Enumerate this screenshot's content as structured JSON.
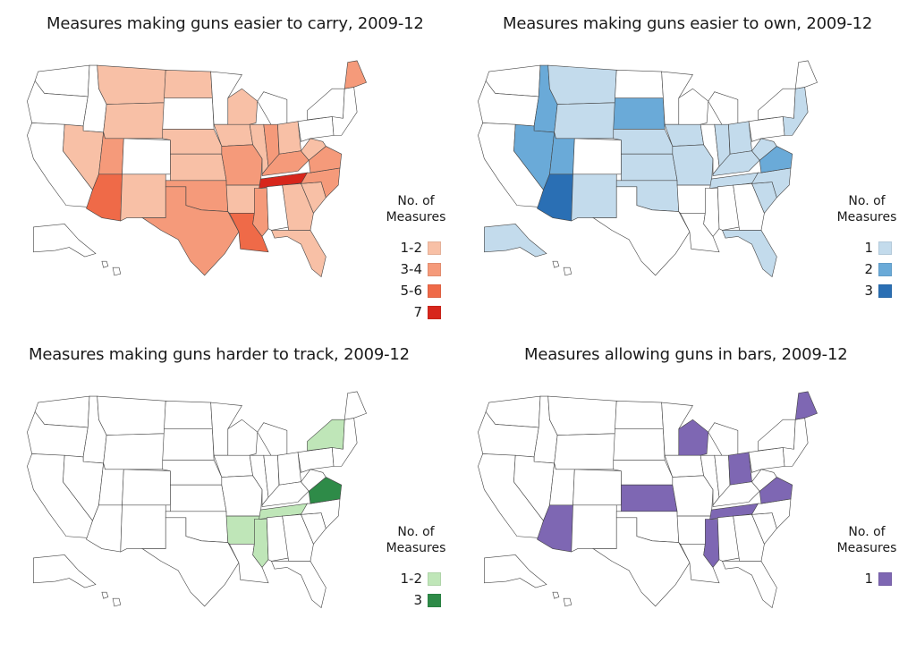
{
  "maps": [
    {
      "title": "Measures making guns easier to carry, 2009-12",
      "legend": {
        "title_line1": "No. of",
        "title_line2": "Measures",
        "items": [
          {
            "label": "1-2",
            "color": "#f8c0a6"
          },
          {
            "label": "3-4",
            "color": "#f59a7a"
          },
          {
            "label": "5-6",
            "color": "#ef6a48"
          },
          {
            "label": "7",
            "color": "#d7261c"
          }
        ]
      },
      "state_classes": {
        "CA": -1,
        "OR": -1,
        "WA": -1,
        "ID": -1,
        "NV": 0,
        "UT": 1,
        "AZ": 2,
        "MT": 0,
        "WY": 0,
        "CO": -1,
        "NM": 0,
        "ND": 0,
        "SD": -1,
        "NE": 0,
        "KS": 0,
        "OK": 1,
        "TX": 1,
        "MN": -1,
        "IA": 0,
        "MO": 1,
        "AR": 0,
        "LA": 2,
        "WI": 0,
        "IL": 0,
        "MS": 1,
        "MI": -1,
        "IN": 1,
        "OH": 0,
        "KY": 1,
        "TN": 3,
        "AL": -1,
        "GA": 0,
        "FL": 0,
        "SC": 0,
        "NC": 1,
        "VA": 1,
        "WV": 0,
        "PA": -1,
        "NY": -1,
        "ME": 1,
        "NE_REGION": -1,
        "AK": -1,
        "HI": -1
      }
    },
    {
      "title": "Measures making guns easier to own, 2009-12",
      "legend": {
        "title_line1": "No. of",
        "title_line2": "Measures",
        "items": [
          {
            "label": "1",
            "color": "#c3dbec"
          },
          {
            "label": "2",
            "color": "#6aaad8"
          },
          {
            "label": "3",
            "color": "#2a6fb4"
          }
        ]
      },
      "state_classes": {
        "CA": -1,
        "OR": -1,
        "WA": -1,
        "ID": 1,
        "NV": 1,
        "UT": 1,
        "AZ": 2,
        "MT": 0,
        "WY": 0,
        "CO": -1,
        "NM": 0,
        "ND": -1,
        "SD": 1,
        "NE": 0,
        "KS": 0,
        "OK": 0,
        "TX": -1,
        "MN": -1,
        "IA": 0,
        "MO": 0,
        "AR": -1,
        "LA": -1,
        "WI": -1,
        "IL": -1,
        "MS": -1,
        "MI": -1,
        "IN": 0,
        "OH": 0,
        "KY": 0,
        "TN": 0,
        "AL": -1,
        "GA": -1,
        "FL": 0,
        "SC": 0,
        "NC": 0,
        "VA": 1,
        "WV": 0,
        "PA": -1,
        "NY": -1,
        "ME": -1,
        "NE_REGION": 0,
        "AK": 0,
        "HI": -1
      }
    },
    {
      "title": "Measures making guns harder to track, 2009-12",
      "legend": {
        "title_line1": "No. of",
        "title_line2": "Measures",
        "items": [
          {
            "label": "1-2",
            "color": "#bfe6b8"
          },
          {
            "label": "3",
            "color": "#2e8b48"
          }
        ]
      },
      "state_classes": {
        "CA": -1,
        "OR": -1,
        "WA": -1,
        "ID": -1,
        "NV": -1,
        "UT": -1,
        "AZ": -1,
        "MT": -1,
        "WY": -1,
        "CO": -1,
        "NM": -1,
        "ND": -1,
        "SD": -1,
        "NE": -1,
        "KS": -1,
        "OK": -1,
        "TX": -1,
        "MN": -1,
        "IA": -1,
        "MO": -1,
        "AR": 0,
        "LA": -1,
        "WI": -1,
        "IL": -1,
        "MS": 0,
        "MI": -1,
        "IN": -1,
        "OH": -1,
        "KY": -1,
        "TN": 0,
        "AL": -1,
        "GA": -1,
        "FL": -1,
        "SC": -1,
        "NC": -1,
        "VA": 1,
        "WV": -1,
        "PA": -1,
        "NY": 0,
        "ME": -1,
        "NE_REGION": -1,
        "AK": -1,
        "HI": -1
      }
    },
    {
      "title": "Measures allowing guns in bars, 2009-12",
      "legend": {
        "title_line1": "No. of",
        "title_line2": "Measures",
        "items": [
          {
            "label": "1",
            "color": "#7e67b3"
          }
        ]
      },
      "state_classes": {
        "CA": -1,
        "OR": -1,
        "WA": -1,
        "ID": -1,
        "NV": -1,
        "UT": -1,
        "AZ": 0,
        "MT": -1,
        "WY": -1,
        "CO": -1,
        "NM": -1,
        "ND": -1,
        "SD": -1,
        "NE": -1,
        "KS": 0,
        "OK": -1,
        "TX": -1,
        "MN": -1,
        "IA": -1,
        "MO": -1,
        "AR": -1,
        "LA": -1,
        "WI": 0,
        "IL": -1,
        "MS": 0,
        "MI": -1,
        "IN": -1,
        "OH": 0,
        "KY": -1,
        "TN": 0,
        "AL": -1,
        "GA": -1,
        "FL": -1,
        "SC": -1,
        "NC": -1,
        "VA": 0,
        "WV": -1,
        "PA": -1,
        "NY": -1,
        "ME": 0,
        "NE_REGION": -1,
        "AK": -1,
        "HI": -1
      }
    }
  ]
}
